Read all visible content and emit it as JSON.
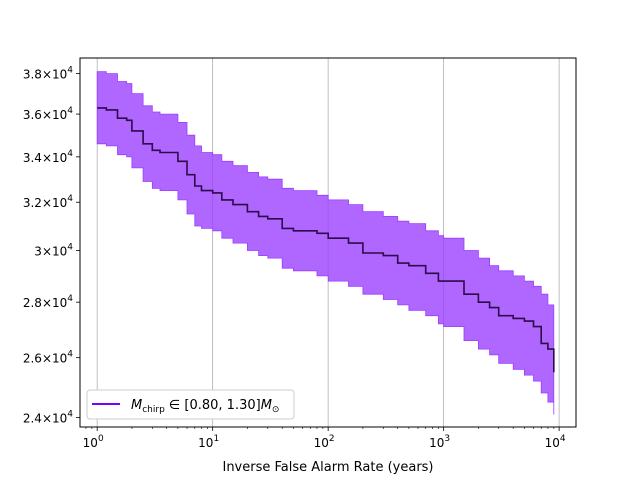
{
  "chart_data": {
    "type": "line",
    "title": "",
    "xlabel": "Inverse False Alarm Rate (years)",
    "ylabel": "",
    "xscale": "log",
    "yscale": "log",
    "xlim": [
      0.71,
      14000
    ],
    "ylim": [
      23700,
      38800
    ],
    "grid": "vertical lines at x major ticks",
    "legend_placement": "lower-left",
    "xticks": [
      {
        "value": 1,
        "base": "10",
        "exp": "0"
      },
      {
        "value": 10,
        "base": "10",
        "exp": "1"
      },
      {
        "value": 100,
        "base": "10",
        "exp": "2"
      },
      {
        "value": 1000,
        "base": "10",
        "exp": "3"
      },
      {
        "value": 10000,
        "base": "10",
        "exp": "4"
      }
    ],
    "yticks": [
      {
        "value": 24000,
        "mant": "2.4",
        "exp": "4"
      },
      {
        "value": 26000,
        "mant": "2.6",
        "exp": "4"
      },
      {
        "value": 28000,
        "mant": "2.8",
        "exp": "4"
      },
      {
        "value": 30000,
        "mant": "3",
        "exp": "4"
      },
      {
        "value": 32000,
        "mant": "3.2",
        "exp": "4"
      },
      {
        "value": 34000,
        "mant": "3.4",
        "exp": "4"
      },
      {
        "value": 36000,
        "mant": "3.6",
        "exp": "4"
      },
      {
        "value": 38000,
        "mant": "3.8",
        "exp": "4"
      }
    ],
    "series": [
      {
        "legend": {
          "symbol": "M",
          "sub": "chirp",
          "text": " ∈ [0.80, 1.30]",
          "tail": "M",
          "tail_sub": "⊙"
        },
        "line_color": "#2e0a4a",
        "band_color": "#9a3cff",
        "legend_color": "#7a00ff",
        "x": [
          1,
          1.2,
          1.5,
          1.8,
          2,
          2.5,
          3,
          3.5,
          4,
          5,
          6,
          7,
          8,
          10,
          12,
          15,
          20,
          25,
          30,
          40,
          50,
          60,
          80,
          100,
          150,
          200,
          300,
          400,
          500,
          700,
          900,
          1000,
          1500,
          2000,
          2500,
          3000,
          4000,
          5000,
          6000,
          7000,
          8000,
          9000
        ],
        "y": [
          36300,
          36200,
          35800,
          35700,
          35200,
          34600,
          34300,
          34200,
          34200,
          33800,
          33200,
          32700,
          32500,
          32400,
          32100,
          31900,
          31600,
          31400,
          31300,
          30900,
          30800,
          30800,
          30700,
          30500,
          30300,
          29900,
          29800,
          29500,
          29400,
          29100,
          28800,
          28800,
          28300,
          28000,
          27800,
          27500,
          27400,
          27300,
          27100,
          26500,
          26300,
          25500
        ],
        "lower": [
          34600,
          34500,
          34100,
          34000,
          33500,
          32900,
          32600,
          32500,
          32500,
          32100,
          31500,
          31000,
          30900,
          30800,
          30500,
          30300,
          30000,
          29800,
          29700,
          29300,
          29200,
          29200,
          29000,
          28800,
          28600,
          28300,
          28100,
          27900,
          27700,
          27500,
          27200,
          27100,
          26600,
          26300,
          26100,
          25800,
          25600,
          25400,
          25200,
          24800,
          24500,
          24100
        ],
        "upper": [
          38100,
          38000,
          37600,
          37500,
          37000,
          36400,
          36100,
          36000,
          36000,
          35600,
          35000,
          34500,
          34200,
          34100,
          33800,
          33600,
          33300,
          33100,
          33000,
          32600,
          32500,
          32500,
          32300,
          32100,
          31900,
          31600,
          31400,
          31200,
          31100,
          30800,
          30600,
          30500,
          30000,
          29700,
          29400,
          29200,
          29000,
          28800,
          28600,
          28300,
          27900,
          27000
        ]
      }
    ]
  }
}
